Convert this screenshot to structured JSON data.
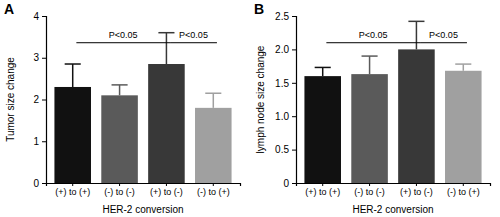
{
  "chart_data": [
    {
      "type": "bar",
      "title": "A",
      "x_label": "HER-2 conversion",
      "y_label": "Tumor size change",
      "categories": [
        "(+) to (+)",
        "(-) to (-)",
        "(+) to (-)",
        "(-) to (+)"
      ],
      "values": [
        2.3,
        2.1,
        2.85,
        1.8
      ],
      "errors": [
        0.55,
        0.25,
        0.75,
        0.35
      ],
      "colors": [
        "#111111",
        "#5a5a5a",
        "#383838",
        "#a0a0a0"
      ],
      "ylim": [
        0,
        4
      ],
      "yticks": [
        0,
        1,
        2,
        3,
        4
      ],
      "annotations": [
        {
          "text": "P<0.05",
          "between": [
            "(+) to (+)",
            "(+) to (-)"
          ]
        },
        {
          "text": "P<0.05",
          "between": [
            "(+) to (-)",
            "(-) to (+)"
          ]
        }
      ]
    },
    {
      "type": "bar",
      "title": "B",
      "x_label": "HER-2 conversion",
      "y_label": "lymph node size change",
      "categories": [
        "(+) to (+)",
        "(-) to (-)",
        "(+) to (-)",
        "(-) to (+)"
      ],
      "values": [
        1.6,
        1.63,
        2.0,
        1.68
      ],
      "errors": [
        0.13,
        0.27,
        0.42,
        0.1
      ],
      "colors": [
        "#111111",
        "#5a5a5a",
        "#383838",
        "#a0a0a0"
      ],
      "ylim": [
        0,
        2.5
      ],
      "yticks": [
        0,
        0.5,
        {
          "value": 1,
          "label": "1.0"
        },
        1.5,
        {
          "value": 2,
          "label": "2.0"
        },
        2.5
      ],
      "annotations": [
        {
          "text": "P<0.05",
          "between": [
            "(+) to (+)",
            "(+) to (-)"
          ]
        },
        {
          "text": "P<0.05",
          "between": [
            "(+) to (-)",
            "(-) to (+)"
          ]
        }
      ]
    }
  ]
}
